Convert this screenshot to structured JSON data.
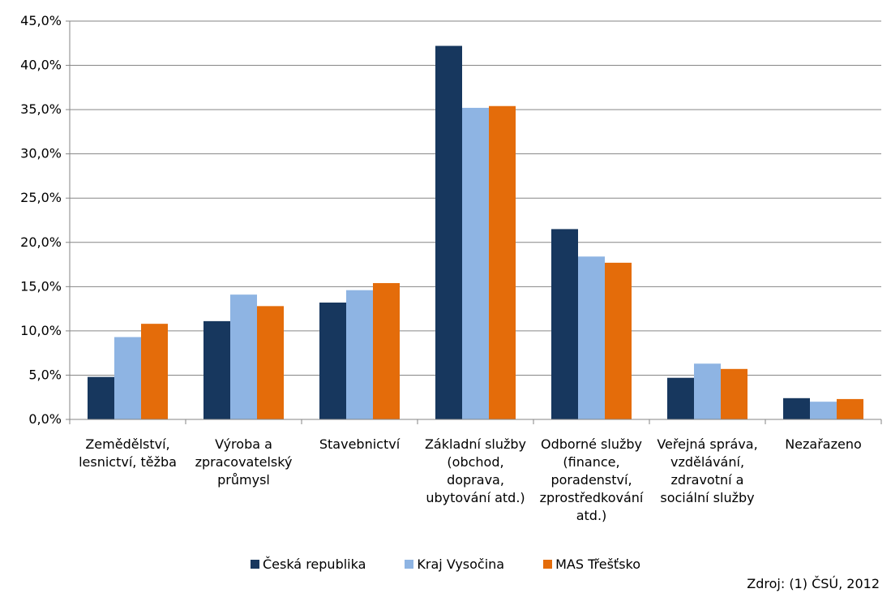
{
  "chart_data": {
    "type": "bar",
    "categories": [
      [
        "Zemědělství,",
        "lesnictví, těžba"
      ],
      [
        "Výroba a",
        "zpracovatelský",
        "průmysl"
      ],
      [
        "Stavebnictví"
      ],
      [
        "Základní služby",
        "(obchod,",
        "doprava,",
        "ubytování atd.)"
      ],
      [
        "Odborné služby",
        "(finance,",
        "poradenství,",
        "zprostředkování",
        "atd.)"
      ],
      [
        "Veřejná správa,",
        "vzdělávání,",
        "zdravotní a",
        "sociální služby"
      ],
      [
        "Nezařazeno"
      ]
    ],
    "series": [
      {
        "name": "Česká republika",
        "color": "#17375E",
        "values": [
          4.8,
          11.1,
          13.2,
          42.2,
          21.5,
          4.7,
          2.4
        ]
      },
      {
        "name": "Kraj Vysočina",
        "color": "#8EB4E3",
        "values": [
          9.3,
          14.1,
          14.6,
          35.2,
          18.4,
          6.3,
          2.0
        ]
      },
      {
        "name": "MAS Třešťsko",
        "color": "#E46C0A",
        "values": [
          10.8,
          12.8,
          15.4,
          35.4,
          17.7,
          5.7,
          2.3
        ]
      }
    ],
    "yticks": [
      "0,0%",
      "5,0%",
      "10,0%",
      "15,0%",
      "20,0%",
      "25,0%",
      "30,0%",
      "35,0%",
      "40,0%",
      "45,0%"
    ],
    "ylim": [
      0,
      45
    ],
    "grid": true,
    "legend_position": "bottom"
  },
  "source": "Zdroj: (1) ČSÚ, 2012"
}
